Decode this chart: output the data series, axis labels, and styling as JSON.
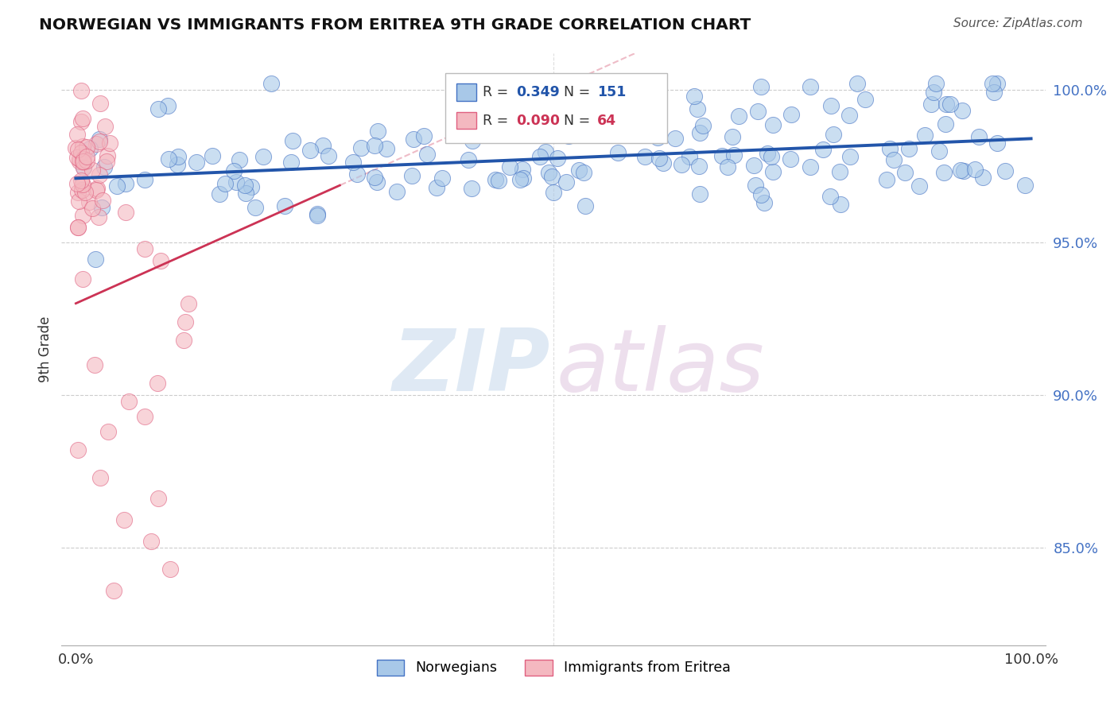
{
  "title": "NORWEGIAN VS IMMIGRANTS FROM ERITREA 9TH GRADE CORRELATION CHART",
  "source": "Source: ZipAtlas.com",
  "ylabel": "9th Grade",
  "r_norwegian": 0.349,
  "n_norwegian": 151,
  "r_eritrea": 0.09,
  "n_eritrea": 64,
  "norwegian_color": "#a8c8e8",
  "norwegian_edge_color": "#4472c4",
  "eritrea_color": "#f4b8c0",
  "eritrea_edge_color": "#e06080",
  "norwegian_line_color": "#2255aa",
  "eritrea_line_color": "#cc3355",
  "eritrea_dash_color": "#e8a0b0",
  "background_color": "#ffffff",
  "legend_labels": [
    "Norwegians",
    "Immigrants from Eritrea"
  ],
  "yaxis_values": [
    0.85,
    0.9,
    0.95,
    1.0
  ],
  "ylim": [
    0.818,
    1.012
  ],
  "xlim": [
    -0.015,
    1.015
  ],
  "watermark_zip_color": "#b8d0e8",
  "watermark_atlas_color": "#d8b8d8",
  "tick_label_color": "#4472c4"
}
